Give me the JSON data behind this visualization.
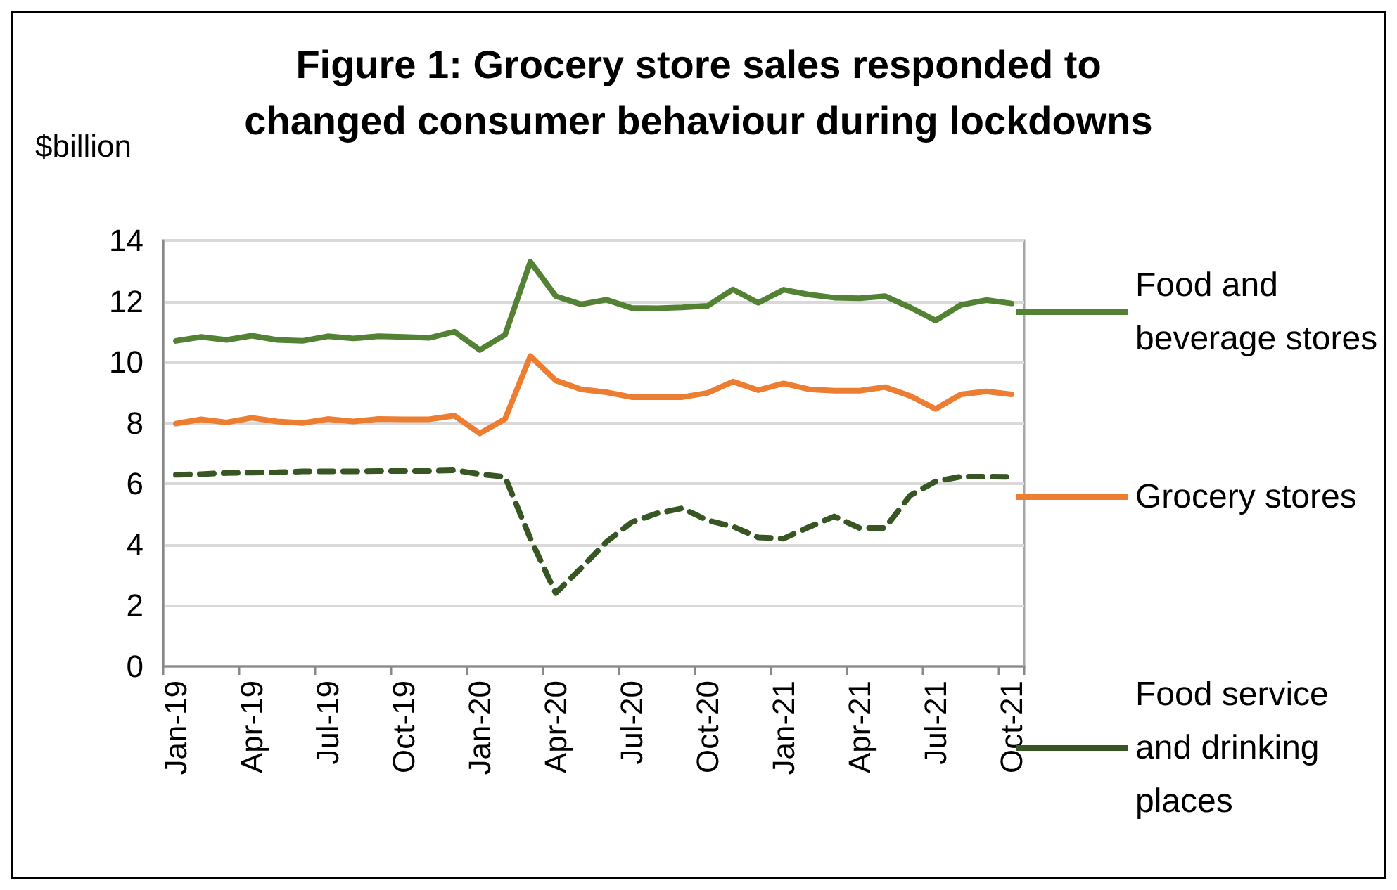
{
  "chart_data": {
    "type": "line",
    "title": "Figure 1: Grocery store sales responded to\nchanged consumer behaviour during lockdowns",
    "ylabel": "$billion",
    "categories": [
      "Jan-19",
      null,
      null,
      "Apr-19",
      null,
      null,
      "Jul-19",
      null,
      null,
      "Oct-19",
      null,
      null,
      "Jan-20",
      null,
      null,
      "Apr-20",
      null,
      null,
      "Jul-20",
      null,
      null,
      "Oct-20",
      null,
      null,
      "Jan-21",
      null,
      null,
      "Apr-21",
      null,
      null,
      "Jul-21",
      null,
      null,
      "Oct-21"
    ],
    "series": [
      {
        "name": "Food and beverage stores",
        "color": "#548235",
        "line_style": "solid",
        "values": [
          10.7,
          10.83,
          10.73,
          10.87,
          10.73,
          10.7,
          10.85,
          10.78,
          10.85,
          10.83,
          10.8,
          11.0,
          10.4,
          10.9,
          13.3,
          12.17,
          11.9,
          12.05,
          11.78,
          11.77,
          11.8,
          11.85,
          12.39,
          11.95,
          12.38,
          12.22,
          12.12,
          12.1,
          12.17,
          11.8,
          11.37,
          11.88,
          12.04,
          11.93
        ]
      },
      {
        "name": "Grocery stores",
        "color": "#ed7d31",
        "line_style": "solid",
        "values": [
          7.98,
          8.12,
          8.02,
          8.17,
          8.05,
          8.0,
          8.13,
          8.05,
          8.13,
          8.12,
          8.12,
          8.24,
          7.66,
          8.13,
          10.2,
          9.4,
          9.11,
          9.01,
          8.85,
          8.85,
          8.85,
          8.99,
          9.36,
          9.08,
          9.3,
          9.11,
          9.06,
          9.06,
          9.18,
          8.89,
          8.46,
          8.94,
          9.04,
          8.94
        ]
      },
      {
        "name": "Food service and drinking places",
        "color": "#375623",
        "line_style": "dashed",
        "values": [
          6.3,
          6.32,
          6.36,
          6.37,
          6.38,
          6.41,
          6.41,
          6.41,
          6.42,
          6.42,
          6.42,
          6.45,
          6.32,
          6.23,
          4.2,
          2.41,
          3.23,
          4.09,
          4.74,
          5.03,
          5.2,
          4.8,
          4.6,
          4.24,
          4.2,
          4.58,
          4.93,
          4.55,
          4.55,
          5.62,
          6.08,
          6.24,
          6.24,
          6.23
        ]
      }
    ],
    "ylim": [
      0,
      14
    ],
    "yticks": [
      0,
      2,
      4,
      6,
      8,
      10,
      12,
      14
    ],
    "grid": "y",
    "legend": "right",
    "marker": "none"
  }
}
